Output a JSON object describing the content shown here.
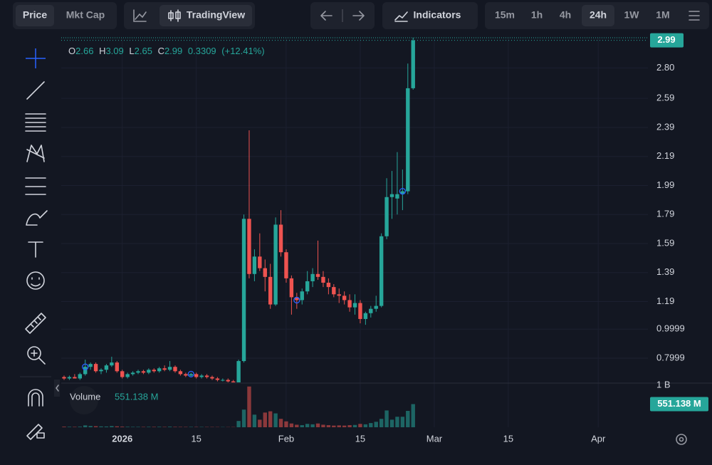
{
  "toolbar": {
    "price": "Price",
    "mkt_cap": "Mkt Cap",
    "tradingview": "TradingView",
    "indicators": "Indicators",
    "timeframes": [
      "15m",
      "1h",
      "4h",
      "24h",
      "1W",
      "1M"
    ]
  },
  "chart_data": {
    "type": "candlestick",
    "legend_keys": [
      "O",
      "H",
      "L",
      "C"
    ],
    "change": 0.3309,
    "change_percent_label": "(+12.41%)",
    "open": [
      0.67,
      0.66,
      0.67,
      0.66,
      0.69,
      0.74,
      0.76,
      0.71,
      0.72,
      0.75,
      0.77,
      0.71,
      0.67,
      0.69,
      0.7,
      0.71,
      0.7,
      0.72,
      0.71,
      0.73,
      0.72,
      0.74,
      0.71,
      0.69,
      0.68,
      0.69,
      0.67,
      0.68,
      0.67,
      0.66,
      0.65,
      0.65,
      0.64,
      0.63,
      0.78,
      1.76,
      1.38,
      1.5,
      1.42,
      1.36,
      1.17,
      1.72,
      1.53,
      1.35,
      1.22,
      1.2,
      1.26,
      1.33,
      1.38,
      1.36,
      1.32,
      1.29,
      1.24,
      1.23,
      1.2,
      1.15,
      1.18,
      1.07,
      1.11,
      1.14,
      1.16,
      1.64,
      1.91,
      1.9,
      1.93,
      1.95,
      2.66
    ],
    "high": [
      0.68,
      0.68,
      0.69,
      0.7,
      0.79,
      0.77,
      0.77,
      0.73,
      0.76,
      0.81,
      0.78,
      0.72,
      0.7,
      0.71,
      0.72,
      0.72,
      0.73,
      0.73,
      0.74,
      0.75,
      0.78,
      0.75,
      0.72,
      0.7,
      0.7,
      0.7,
      0.69,
      0.69,
      0.68,
      0.67,
      0.66,
      0.66,
      0.65,
      0.79,
      1.79,
      2.37,
      1.55,
      1.66,
      1.48,
      1.45,
      1.77,
      1.82,
      1.55,
      1.37,
      1.25,
      1.28,
      1.4,
      1.42,
      1.61,
      1.4,
      1.35,
      1.31,
      1.28,
      1.26,
      1.24,
      1.24,
      1.2,
      1.12,
      1.16,
      1.23,
      1.66,
      2.04,
      2.09,
      2.22,
      2.1,
      2.83,
      3.09
    ],
    "low": [
      0.65,
      0.65,
      0.66,
      0.65,
      0.68,
      0.72,
      0.7,
      0.69,
      0.7,
      0.74,
      0.7,
      0.66,
      0.66,
      0.68,
      0.69,
      0.69,
      0.69,
      0.7,
      0.7,
      0.71,
      0.71,
      0.7,
      0.68,
      0.67,
      0.67,
      0.66,
      0.66,
      0.66,
      0.65,
      0.64,
      0.64,
      0.63,
      0.62,
      0.62,
      0.77,
      1.35,
      1.33,
      1.4,
      1.26,
      1.14,
      1.16,
      1.5,
      1.32,
      1.1,
      1.14,
      1.17,
      1.24,
      1.29,
      1.34,
      1.29,
      1.24,
      1.22,
      1.18,
      1.17,
      1.12,
      1.1,
      1.04,
      1.03,
      1.08,
      1.12,
      1.15,
      1.62,
      1.76,
      1.79,
      1.82,
      1.93,
      2.65
    ],
    "close": [
      0.66,
      0.67,
      0.66,
      0.69,
      0.74,
      0.76,
      0.71,
      0.72,
      0.75,
      0.77,
      0.71,
      0.67,
      0.69,
      0.7,
      0.71,
      0.7,
      0.72,
      0.71,
      0.73,
      0.72,
      0.74,
      0.71,
      0.69,
      0.68,
      0.69,
      0.67,
      0.68,
      0.67,
      0.66,
      0.65,
      0.65,
      0.64,
      0.63,
      0.78,
      1.76,
      1.38,
      1.5,
      1.42,
      1.36,
      1.17,
      1.72,
      1.53,
      1.35,
      1.22,
      1.2,
      1.26,
      1.33,
      1.38,
      1.36,
      1.32,
      1.29,
      1.24,
      1.23,
      1.2,
      1.15,
      1.18,
      1.07,
      1.11,
      1.14,
      1.16,
      1.64,
      1.91,
      1.93,
      1.93,
      1.95,
      2.66,
      2.99
    ],
    "up_color": "#26a69a",
    "down_color": "#ef5350",
    "xlim": [
      -0.54,
      110.4
    ],
    "xticks": [
      {
        "value": 11,
        "label": "2026"
      },
      {
        "value": 25,
        "label": "15"
      },
      {
        "value": 42,
        "label": "Feb"
      },
      {
        "value": 56,
        "label": "15"
      },
      {
        "value": 70,
        "label": "Mar"
      },
      {
        "value": 84,
        "label": "15"
      },
      {
        "value": 101,
        "label": "Apr"
      }
    ],
    "ylim": [
      0.633,
      3.008
    ],
    "yticks": [
      0.7999,
      0.9999,
      1.19,
      1.39,
      1.59,
      1.79,
      1.99,
      2.19,
      2.39,
      2.59,
      {
        "value": 2.8,
        "label": "2.80"
      }
    ],
    "grid": true,
    "markers": [
      4,
      24,
      44,
      64
    ],
    "volume": {
      "name": "Volume",
      "values": [
        15000000,
        12000000,
        10000000,
        14000000,
        45000000,
        30000000,
        25000000,
        20000000,
        18000000,
        28000000,
        22000000,
        15000000,
        12000000,
        10000000,
        10000000,
        9000000,
        11000000,
        10000000,
        12000000,
        9000000,
        14000000,
        10000000,
        9000000,
        8000000,
        9000000,
        8000000,
        8000000,
        7000000,
        7000000,
        6000000,
        6000000,
        5000000,
        6000000,
        150000000,
        420000000,
        970000000,
        300000000,
        180000000,
        350000000,
        380000000,
        330000000,
        200000000,
        140000000,
        90000000,
        60000000,
        50000000,
        80000000,
        70000000,
        90000000,
        60000000,
        50000000,
        40000000,
        45000000,
        40000000,
        50000000,
        55000000,
        80000000,
        70000000,
        100000000,
        130000000,
        200000000,
        400000000,
        180000000,
        250000000,
        250000000,
        390000000,
        551138000
      ],
      "last_label": "551.138 M",
      "ylim": [
        0,
        1000000000
      ],
      "yticks": [
        {
          "value": 1000000000,
          "label": "1 B"
        }
      ]
    }
  }
}
